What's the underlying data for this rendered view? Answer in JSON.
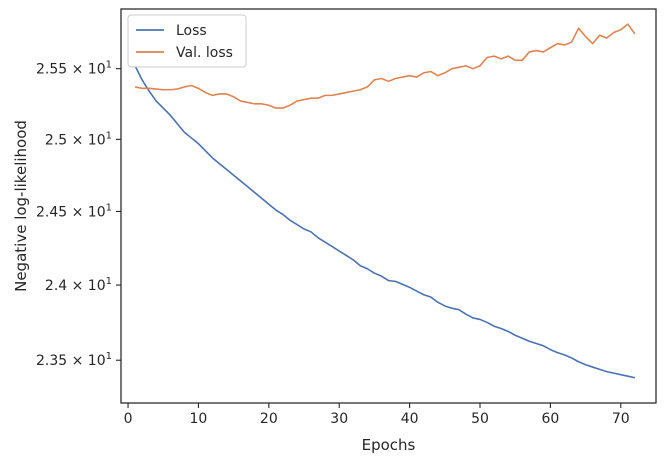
{
  "chart_data": {
    "type": "line",
    "xlabel": "Epochs",
    "ylabel": "Negative log-likelihood",
    "xlim": [
      -1,
      75
    ],
    "ylim": [
      23.22,
      25.93
    ],
    "y_scale": "log",
    "grid": false,
    "legend_position": "top-left",
    "x_ticks": [
      0,
      10,
      20,
      30,
      40,
      50,
      60,
      70
    ],
    "x_tick_labels": [
      "0",
      "10",
      "20",
      "30",
      "40",
      "50",
      "60",
      "70"
    ],
    "y_ticks": [
      23.5,
      24.0,
      24.5,
      25.0,
      25.5
    ],
    "y_tick_labels": [
      {
        "mant": "2.35",
        "exp": "1"
      },
      {
        "mant": "2.4",
        "exp": "1"
      },
      {
        "mant": "2.45",
        "exp": "1"
      },
      {
        "mant": "2.5",
        "exp": "1"
      },
      {
        "mant": "2.55",
        "exp": "1"
      }
    ],
    "x": [
      1,
      2,
      3,
      4,
      5,
      6,
      7,
      8,
      9,
      10,
      11,
      12,
      13,
      14,
      15,
      16,
      17,
      18,
      19,
      20,
      21,
      22,
      23,
      24,
      25,
      26,
      27,
      28,
      29,
      30,
      31,
      32,
      33,
      34,
      35,
      36,
      37,
      38,
      39,
      40,
      41,
      42,
      43,
      44,
      45,
      46,
      47,
      48,
      49,
      50,
      51,
      52,
      53,
      54,
      55,
      56,
      57,
      58,
      59,
      60,
      61,
      62,
      63,
      64,
      65,
      66,
      67,
      68,
      69,
      70,
      71,
      72
    ],
    "series": [
      {
        "name": "Loss",
        "color": "#4c72b0",
        "values": [
          25.52,
          25.42,
          25.34,
          25.27,
          25.22,
          25.17,
          25.11,
          25.05,
          25.01,
          24.97,
          24.92,
          24.87,
          24.83,
          24.79,
          24.75,
          24.71,
          24.67,
          24.63,
          24.59,
          24.55,
          24.51,
          24.48,
          24.44,
          24.41,
          24.38,
          24.36,
          24.32,
          24.29,
          24.26,
          24.23,
          24.2,
          24.17,
          24.13,
          24.11,
          24.08,
          24.06,
          24.03,
          24.025,
          24.005,
          23.985,
          23.96,
          23.935,
          23.92,
          23.885,
          23.86,
          23.845,
          23.835,
          23.805,
          23.78,
          23.77,
          23.75,
          23.725,
          23.71,
          23.69,
          23.665,
          23.645,
          23.625,
          23.61,
          23.595,
          23.57,
          23.55,
          23.535,
          23.515,
          23.49,
          23.47,
          23.455,
          23.44,
          23.425,
          23.415,
          23.405,
          23.395,
          23.385
        ]
      },
      {
        "name": "Val. loss",
        "color": "#dd8452",
        "values": [
          25.37,
          25.36,
          25.36,
          25.355,
          25.35,
          25.35,
          25.355,
          25.37,
          25.38,
          25.36,
          25.33,
          25.31,
          25.32,
          25.32,
          25.3,
          25.27,
          25.26,
          25.25,
          25.25,
          25.24,
          25.22,
          25.22,
          25.24,
          25.27,
          25.28,
          25.29,
          25.29,
          25.31,
          25.31,
          25.32,
          25.33,
          25.34,
          25.35,
          25.37,
          25.42,
          25.43,
          25.41,
          25.43,
          25.44,
          25.45,
          25.44,
          25.47,
          25.48,
          25.45,
          25.47,
          25.5,
          25.51,
          25.52,
          25.5,
          25.52,
          25.58,
          25.59,
          25.57,
          25.59,
          25.56,
          25.56,
          25.62,
          25.63,
          25.62,
          25.65,
          25.68,
          25.67,
          25.69,
          25.79,
          25.73,
          25.68,
          25.74,
          25.72,
          25.76,
          25.78,
          25.82,
          25.75
        ]
      }
    ]
  }
}
